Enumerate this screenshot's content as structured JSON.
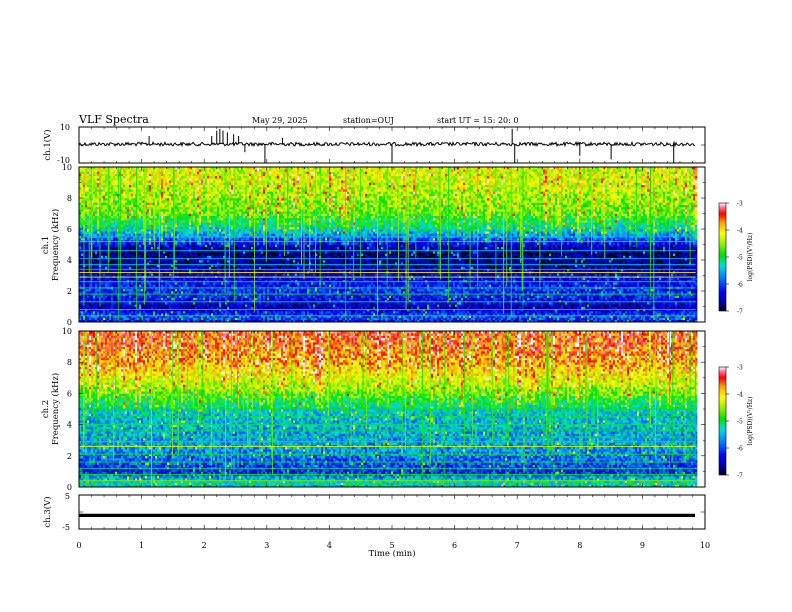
{
  "header": {
    "title": "VLF Spectra",
    "date": "May 29, 2025",
    "station": "station=OUJ",
    "start": "start UT = 15: 20: 0"
  },
  "chart_data": [
    {
      "type": "line",
      "name": "waveform-ch1",
      "ylabel": "ch.1(V)",
      "xlim": [
        0,
        10
      ],
      "xstop": 9.85,
      "ylim": [
        -10,
        10
      ],
      "yticklabels": [
        "10",
        "-10"
      ],
      "baseline": 0.5,
      "spikes": [
        {
          "x": 1.12,
          "y": 5
        },
        {
          "x": 2.12,
          "y": 5
        },
        {
          "x": 2.2,
          "y": 8
        },
        {
          "x": 2.25,
          "y": 9
        },
        {
          "x": 2.3,
          "y": 8
        },
        {
          "x": 2.37,
          "y": 7
        },
        {
          "x": 2.47,
          "y": 6
        },
        {
          "x": 2.55,
          "y": 5
        },
        {
          "x": 2.65,
          "y": -4
        },
        {
          "x": 2.97,
          "y": -10
        },
        {
          "x": 3.25,
          "y": 4
        },
        {
          "x": 5.0,
          "y": -10
        },
        {
          "x": 6.92,
          "y": 9
        },
        {
          "x": 6.96,
          "y": -10
        },
        {
          "x": 8.0,
          "y": -6
        },
        {
          "x": 8.5,
          "y": -8
        },
        {
          "x": 9.5,
          "y": -10
        }
      ]
    },
    {
      "type": "heatmap",
      "name": "spectrogram-ch1",
      "ylabel": "ch.1\nFrequency (kHz)",
      "xlim": [
        0,
        10
      ],
      "xstop": 9.85,
      "ylim": [
        0,
        10
      ],
      "yticks": [
        0,
        2,
        4,
        6,
        8,
        10
      ],
      "colorbar": {
        "label": "log(PSD)(V²/Hz)",
        "range": [
          -7,
          -3
        ],
        "ticks": [
          "-3",
          "-4",
          "-5",
          "-6",
          "-7"
        ]
      },
      "profile": [
        {
          "f": 0.0,
          "v": -6.3
        },
        {
          "f": 0.3,
          "v": -5.9
        },
        {
          "f": 0.6,
          "v": -6.2
        },
        {
          "f": 1.0,
          "v": -6.6
        },
        {
          "f": 1.5,
          "v": -6.3
        },
        {
          "f": 2.0,
          "v": -6.1
        },
        {
          "f": 2.5,
          "v": -6.3
        },
        {
          "f": 3.0,
          "v": -6.4
        },
        {
          "f": 3.5,
          "v": -6.6
        },
        {
          "f": 4.0,
          "v": -6.7
        },
        {
          "f": 4.5,
          "v": -6.8
        },
        {
          "f": 5.0,
          "v": -6.4
        },
        {
          "f": 5.5,
          "v": -5.8
        },
        {
          "f": 6.0,
          "v": -5.3
        },
        {
          "f": 6.5,
          "v": -5.0
        },
        {
          "f": 7.0,
          "v": -4.7
        },
        {
          "f": 8.0,
          "v": -4.5
        },
        {
          "f": 9.0,
          "v": -4.3
        },
        {
          "f": 10.0,
          "v": -4.3
        }
      ],
      "lines": [
        {
          "f": 0.4,
          "v": -4.8
        },
        {
          "f": 0.8,
          "v": -5.0
        },
        {
          "f": 1.3,
          "v": -5.2
        },
        {
          "f": 1.8,
          "v": -5.0
        },
        {
          "f": 2.2,
          "v": -5.2
        },
        {
          "f": 2.6,
          "v": -5.4
        },
        {
          "f": 2.9,
          "v": -4.2
        },
        {
          "f": 3.2,
          "v": -4.0
        },
        {
          "f": 3.4,
          "v": -5.0
        },
        {
          "f": 3.7,
          "v": -5.4
        },
        {
          "f": 4.1,
          "v": -5.6
        },
        {
          "f": 4.6,
          "v": -5.5
        },
        {
          "f": 5.2,
          "v": -5.4
        },
        {
          "f": 5.5,
          "v": -5.5
        }
      ]
    },
    {
      "type": "heatmap",
      "name": "spectrogram-ch2",
      "ylabel": "ch.2\nFrequency (kHz)",
      "xlim": [
        0,
        10
      ],
      "xstop": 9.85,
      "ylim": [
        0,
        10
      ],
      "yticks": [
        0,
        2,
        4,
        6,
        8,
        10
      ],
      "colorbar": {
        "label": "log(PSD)(V²/Hz)",
        "range": [
          -7,
          -3
        ],
        "ticks": [
          "-3",
          "-4",
          "-5",
          "-6",
          "-7"
        ]
      },
      "profile": [
        {
          "f": 0.0,
          "v": -5.4
        },
        {
          "f": 0.3,
          "v": -5.2
        },
        {
          "f": 0.6,
          "v": -5.6
        },
        {
          "f": 1.0,
          "v": -6.2
        },
        {
          "f": 1.5,
          "v": -6.0
        },
        {
          "f": 2.0,
          "v": -5.8
        },
        {
          "f": 2.5,
          "v": -5.6
        },
        {
          "f": 3.0,
          "v": -5.6
        },
        {
          "f": 3.5,
          "v": -5.6
        },
        {
          "f": 4.0,
          "v": -5.5
        },
        {
          "f": 4.5,
          "v": -5.5
        },
        {
          "f": 5.0,
          "v": -5.3
        },
        {
          "f": 5.5,
          "v": -5.0
        },
        {
          "f": 6.0,
          "v": -4.7
        },
        {
          "f": 6.5,
          "v": -4.4
        },
        {
          "f": 7.0,
          "v": -4.2
        },
        {
          "f": 8.0,
          "v": -3.8
        },
        {
          "f": 9.0,
          "v": -3.6
        },
        {
          "f": 10.0,
          "v": -3.5
        }
      ],
      "lines": [
        {
          "f": 0.4,
          "v": -4.6
        },
        {
          "f": 0.8,
          "v": -4.9
        },
        {
          "f": 1.2,
          "v": -5.1
        },
        {
          "f": 1.6,
          "v": -5.0
        },
        {
          "f": 2.1,
          "v": -5.0
        },
        {
          "f": 2.6,
          "v": -4.3
        },
        {
          "f": 2.9,
          "v": -4.8
        },
        {
          "f": 3.2,
          "v": -4.9
        },
        {
          "f": 3.6,
          "v": -5.0
        },
        {
          "f": 4.0,
          "v": -5.1
        },
        {
          "f": 4.5,
          "v": -5.0
        },
        {
          "f": 5.0,
          "v": -4.9
        }
      ]
    },
    {
      "type": "line",
      "name": "waveform-ch3",
      "ylabel": "ch.3(V)",
      "xlim": [
        0,
        10
      ],
      "xstop": 9.85,
      "ylim": [
        -5,
        5
      ],
      "yticklabels": [
        "5",
        "-5"
      ],
      "baseline": -1.0,
      "xlabel": "Time (min)",
      "xticks": [
        0,
        1,
        2,
        3,
        4,
        5,
        6,
        7,
        8,
        9,
        10
      ]
    }
  ],
  "colors": {
    "colormap": [
      "#000000",
      "#00008c",
      "#0000ff",
      "#0078ff",
      "#00dcdc",
      "#00e000",
      "#96f000",
      "#ffff00",
      "#ffa000",
      "#ff0000",
      "#ff78a0",
      "#ffffff"
    ]
  }
}
